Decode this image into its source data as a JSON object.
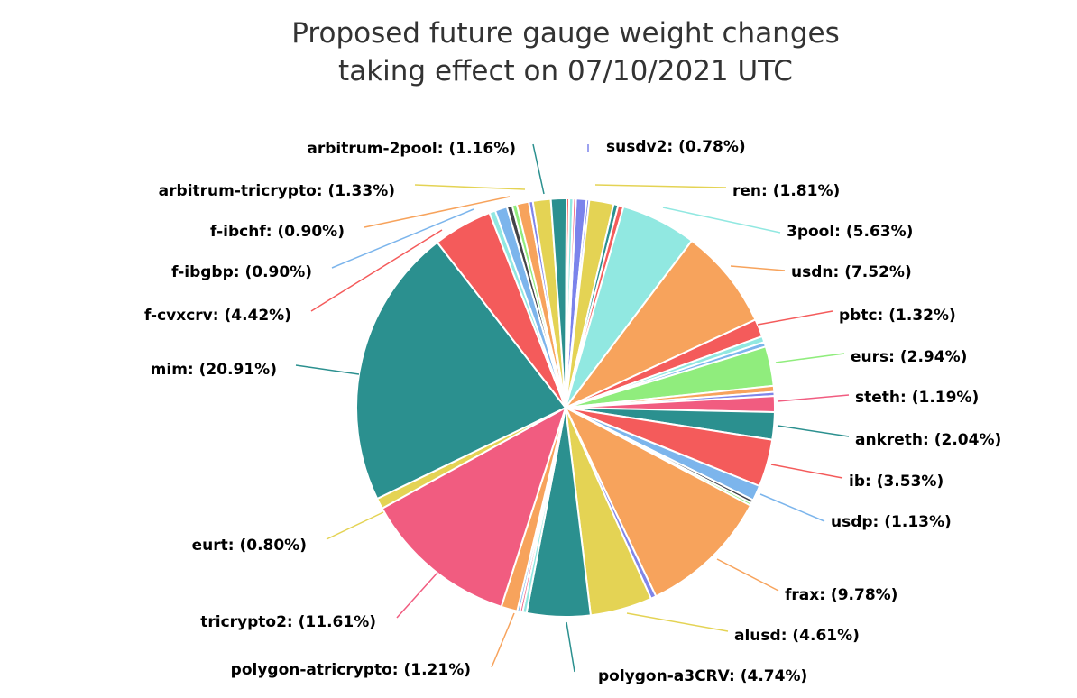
{
  "chart_data": {
    "type": "pie",
    "title": "Proposed future gauge weight changes",
    "subtitle": "taking effect on 07/10/2021 UTC",
    "slices": [
      {
        "name": "susdv2",
        "label": "susdv2: (0.78%)",
        "value": 0.78,
        "color": "#7b83eb"
      },
      {
        "name": "",
        "label": "",
        "value": 0.2,
        "color": "#7b83eb"
      },
      {
        "name": "ren",
        "label": "ren: (1.81%)",
        "value": 1.81,
        "color": "#e4d354"
      },
      {
        "name": "",
        "label": "",
        "value": 0.35,
        "color": "#2b908f"
      },
      {
        "name": "",
        "label": "",
        "value": 0.4,
        "color": "#f45b5b"
      },
      {
        "name": "3pool",
        "label": "3pool: (5.63%)",
        "value": 5.63,
        "color": "#91e8e1"
      },
      {
        "name": "usdn",
        "label": "usdn: (7.52%)",
        "value": 7.52,
        "color": "#f7a35c"
      },
      {
        "name": "pbtc",
        "label": "pbtc: (1.32%)",
        "value": 1.32,
        "color": "#f45b5b"
      },
      {
        "name": "",
        "label": "",
        "value": 0.45,
        "color": "#91e8e1"
      },
      {
        "name": "",
        "label": "",
        "value": 0.35,
        "color": "#7cb5ec"
      },
      {
        "name": "eurs",
        "label": "eurs: (2.94%)",
        "value": 2.94,
        "color": "#90ed7d"
      },
      {
        "name": "",
        "label": "",
        "value": 0.45,
        "color": "#f7a35c"
      },
      {
        "name": "",
        "label": "",
        "value": 0.3,
        "color": "#8085e9"
      },
      {
        "name": "steth",
        "label": "steth: (1.19%)",
        "value": 1.19,
        "color": "#f15c80"
      },
      {
        "name": "ankreth",
        "label": "ankreth: (2.04%)",
        "value": 2.04,
        "color": "#2b908f"
      },
      {
        "name": "ib",
        "label": "ib: (3.53%)",
        "value": 3.53,
        "color": "#f45b5b"
      },
      {
        "name": "usdp",
        "label": "usdp: (1.13%)",
        "value": 1.13,
        "color": "#7cb5ec"
      },
      {
        "name": "",
        "label": "",
        "value": 0.25,
        "color": "#434348"
      },
      {
        "name": "",
        "label": "",
        "value": 0.2,
        "color": "#90ed7d"
      },
      {
        "name": "frax",
        "label": "frax: (9.78%)",
        "value": 9.78,
        "color": "#f7a35c"
      },
      {
        "name": "",
        "label": "",
        "value": 0.4,
        "color": "#8085e9"
      },
      {
        "name": "alusd",
        "label": "alusd: (4.61%)",
        "value": 4.61,
        "color": "#e4d354"
      },
      {
        "name": "polygon-a3CRV",
        "label": "polygon-a3CRV: (4.74%)",
        "value": 4.74,
        "color": "#2b908f"
      },
      {
        "name": "",
        "label": "",
        "value": 0.3,
        "color": "#91e8e1"
      },
      {
        "name": "",
        "label": "",
        "value": 0.2,
        "color": "#f15c80"
      },
      {
        "name": "",
        "label": "",
        "value": 0.2,
        "color": "#7cb5ec"
      },
      {
        "name": "polygon-atricrypto",
        "label": "polygon-atricrypto: (1.21%)",
        "value": 1.21,
        "color": "#f7a35c"
      },
      {
        "name": "tricrypto2",
        "label": "tricrypto2: (11.61%)",
        "value": 11.61,
        "color": "#f15c80"
      },
      {
        "name": "eurt",
        "label": "eurt: (0.80%)",
        "value": 0.8,
        "color": "#e4d354"
      },
      {
        "name": "mim",
        "label": "mim: (20.91%)",
        "value": 20.91,
        "color": "#2b908f"
      },
      {
        "name": "f-cvxcrv",
        "label": "f-cvxcrv: (4.42%)",
        "value": 4.42,
        "color": "#f45b5b"
      },
      {
        "name": "",
        "label": "",
        "value": 0.45,
        "color": "#91e8e1"
      },
      {
        "name": "f-ibgbp",
        "label": "f-ibgbp: (0.90%)",
        "value": 0.9,
        "color": "#7cb5ec"
      },
      {
        "name": "",
        "label": "",
        "value": 0.4,
        "color": "#434348"
      },
      {
        "name": "",
        "label": "",
        "value": 0.35,
        "color": "#90ed7d"
      },
      {
        "name": "f-ibchf",
        "label": "f-ibchf: (0.90%)",
        "value": 0.9,
        "color": "#f7a35c"
      },
      {
        "name": "",
        "label": "",
        "value": 0.3,
        "color": "#8085e9"
      },
      {
        "name": "arbitrum-tricrypto",
        "label": "arbitrum-tricrypto: (1.33%)",
        "value": 1.33,
        "color": "#e4d354"
      },
      {
        "name": "arbitrum-2pool",
        "label": "arbitrum-2pool: (1.16%)",
        "value": 1.16,
        "color": "#2b908f"
      },
      {
        "name": "",
        "label": "",
        "value": 0.2,
        "color": "#f45b5b"
      },
      {
        "name": "",
        "label": "",
        "value": 0.3,
        "color": "#91e8e1"
      },
      {
        "name": "",
        "label": "",
        "value": 0.2,
        "color": "#f15c80"
      }
    ]
  }
}
